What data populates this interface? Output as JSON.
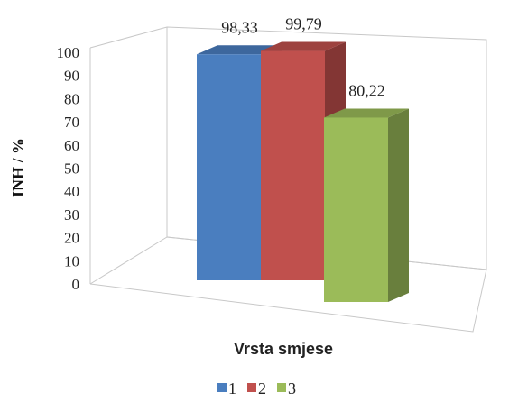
{
  "chart_data": {
    "type": "bar",
    "view": "3d-clustered-column",
    "categories": [
      ""
    ],
    "series": [
      {
        "name": "1",
        "values": [
          98.33
        ],
        "label": "98,33",
        "color": "#4a7ebf"
      },
      {
        "name": "2",
        "values": [
          99.79
        ],
        "label": "99,79",
        "color": "#c0504d"
      },
      {
        "name": "3",
        "values": [
          80.22
        ],
        "label": "80,22",
        "color": "#9bbb59"
      }
    ],
    "title": "",
    "xlabel": "Vrsta smjese",
    "ylabel": "INH / %",
    "ylim": [
      0,
      100
    ],
    "yticks": [
      "0",
      "10",
      "20",
      "30",
      "40",
      "50",
      "60",
      "70",
      "80",
      "90",
      "100"
    ],
    "grid": false,
    "legend": "bottom"
  }
}
